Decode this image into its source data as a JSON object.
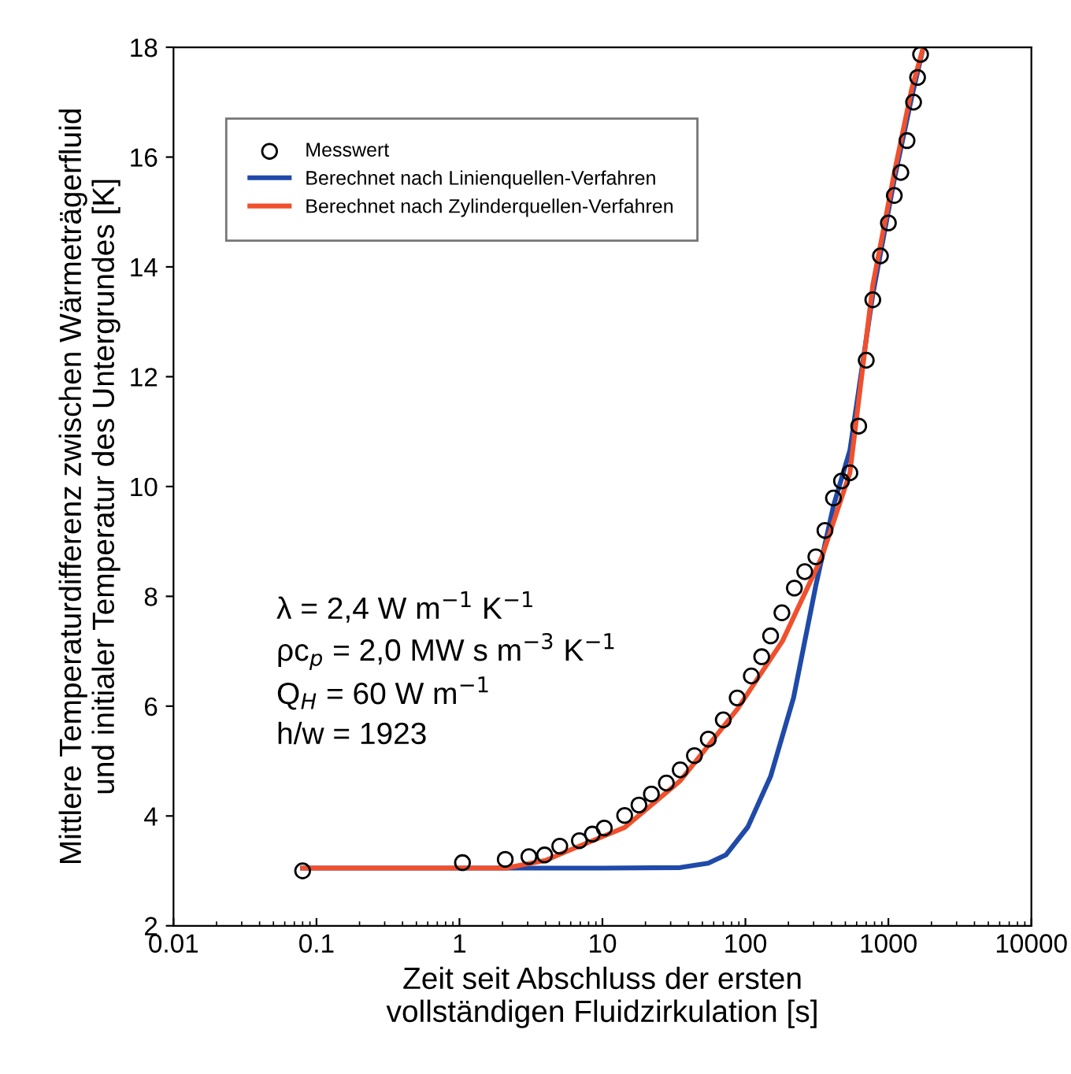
{
  "chart_data": {
    "type": "line",
    "xlabel": "Zeit seit Abschluss der ersten\nvollständigen Fluidzirkulation [s]",
    "ylabel": "Mittlere Temperaturdifferenz zwischen Wärmeträgerfluid\nund initialer Temperatur des Untergrundes [K]",
    "log": "x",
    "xlim": [
      0.01,
      10000
    ],
    "xticks": [
      0.01,
      0.1,
      1,
      10,
      100,
      1000,
      10000
    ],
    "ylim": [
      2,
      18
    ],
    "yticks": [
      2,
      4,
      6,
      8,
      10,
      12,
      14,
      16,
      18
    ],
    "grid": false,
    "legend": "top left",
    "series": [
      {
        "name": "Messwert",
        "type": "scatter",
        "marker": "circle",
        "color": "#000000",
        "x": [
          0.08,
          1.05,
          2.09,
          3.06,
          3.94,
          5.03,
          6.9,
          8.5,
          10.3,
          14.3,
          18,
          22,
          28,
          35,
          44,
          55,
          70,
          87.6,
          110,
          130,
          150,
          180,
          220,
          260,
          311,
          360,
          413,
          470,
          538,
          620,
          700,
          778,
          880,
          1000,
          1100,
          1222,
          1350,
          1500,
          1600,
          1679
        ],
        "values": [
          3.0,
          3.15,
          3.21,
          3.26,
          3.29,
          3.45,
          3.55,
          3.67,
          3.78,
          4.01,
          4.2,
          4.4,
          4.6,
          4.84,
          5.1,
          5.4,
          5.75,
          6.15,
          6.55,
          6.9,
          7.28,
          7.7,
          8.15,
          8.45,
          8.72,
          9.2,
          9.79,
          10.1,
          10.25,
          11.1,
          12.3,
          13.4,
          14.2,
          14.8,
          15.3,
          15.72,
          16.3,
          17.0,
          17.45,
          17.87
        ]
      },
      {
        "name": "Berechnet nach Linienquellen-Verfahren",
        "color": "#1f4aa8",
        "x": [
          0.08,
          2.0,
          10,
          35,
          55,
          73,
          104,
          150,
          217,
          311,
          413,
          538,
          778,
          1101,
          1458,
          1720
        ],
        "values": [
          3.05,
          3.05,
          3.05,
          3.06,
          3.14,
          3.29,
          3.8,
          4.72,
          6.15,
          8.2,
          9.65,
          10.66,
          13.5,
          15.6,
          17.1,
          17.9
        ]
      },
      {
        "name": "Berechnet nach Zylinderquellen-Verfahren",
        "color": "#f0502d",
        "x": [
          0.08,
          2.1,
          4.0,
          5.8,
          14.3,
          35,
          88,
          182,
          343,
          538,
          778,
          1101,
          1458,
          1733
        ],
        "values": [
          3.05,
          3.05,
          3.19,
          3.37,
          3.79,
          4.64,
          5.95,
          7.19,
          8.72,
          10.25,
          13.67,
          15.72,
          17.25,
          17.95
        ]
      }
    ],
    "annotations": [
      "λ = 2,4 W m$^{−1}$ K$^{−1}$",
      "ρc$_{p}$ = 2,0 MW s m$^{−3}$ K$^{−1}$",
      "Q$_{H}$ = 60 W m$^{−1}$",
      "h/w = 1923"
    ]
  }
}
